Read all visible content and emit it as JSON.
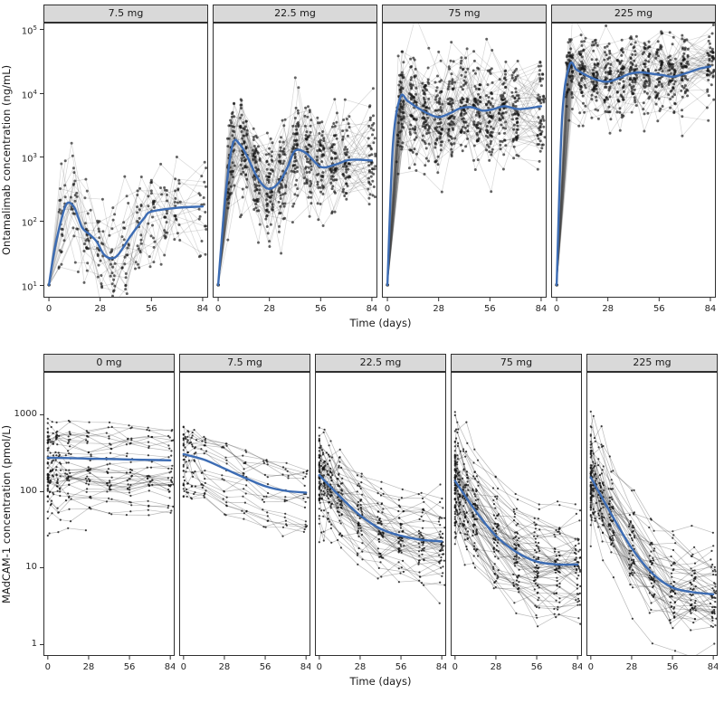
{
  "style": {
    "mean_line_color": "#3c6cb4",
    "spaghetti_line_color": "#4a4a4a",
    "point_color": "#141414",
    "strip_background": "#d9d9d9",
    "panel_border_color": "#2f2f2f",
    "axis_text_color": "#262626",
    "background": "#ffffff"
  },
  "chart_data": [
    {
      "type": "line",
      "y_axis_title": "Ontamalimab concentration (ng/mL)",
      "x_axis_title": "Time (days)",
      "y_scale": "log10",
      "y_tick_style": "power",
      "y_tick_exponents": [
        1,
        2,
        3,
        4,
        5
      ],
      "y_domain_log": [
        0.8,
        5.1
      ],
      "x_ticks": [
        0,
        28,
        56,
        84
      ],
      "x_domain": [
        -3,
        87
      ],
      "day0_value": 10,
      "sample_times": [
        0,
        7,
        14,
        21,
        28,
        35,
        42,
        49,
        56,
        63,
        70,
        84
      ],
      "line_opacity": 0.22,
      "point_opacity": 0.65,
      "point_radius": 1.5,
      "legend": "none",
      "panels": [
        {
          "label": "7.5 mg",
          "n_subjects": 25,
          "subject_sd_log": 0.35,
          "resid_sd_log": 0.3,
          "mean_x": [
            0,
            3,
            7,
            10,
            14,
            18,
            22,
            26,
            30,
            34,
            38,
            45,
            52,
            56,
            70,
            84
          ],
          "mean_y": [
            10,
            35,
            110,
            190,
            160,
            80,
            62,
            48,
            30,
            26,
            30,
            60,
            110,
            140,
            160,
            168
          ]
        },
        {
          "label": "22.5 mg",
          "n_subjects": 60,
          "subject_sd_log": 0.32,
          "resid_sd_log": 0.3,
          "mean_x": [
            0,
            4,
            8,
            12,
            16,
            21,
            26,
            30,
            34,
            38,
            42,
            48,
            56,
            64,
            72,
            84
          ],
          "mean_y": [
            10,
            250,
            1600,
            1550,
            1000,
            500,
            330,
            330,
            430,
            700,
            1250,
            1150,
            700,
            760,
            900,
            880
          ]
        },
        {
          "label": "75 mg",
          "n_subjects": 65,
          "subject_sd_log": 0.28,
          "resid_sd_log": 0.26,
          "mean_x": [
            0,
            3,
            7,
            11,
            16,
            22,
            28,
            34,
            40,
            46,
            52,
            58,
            64,
            72,
            84
          ],
          "mean_y": [
            10,
            1500,
            8500,
            7500,
            6000,
            4800,
            4200,
            4800,
            5800,
            6000,
            5300,
            5600,
            6200,
            5600,
            6200
          ]
        },
        {
          "label": "225 mg",
          "n_subjects": 60,
          "subject_sd_log": 0.24,
          "resid_sd_log": 0.22,
          "mean_x": [
            0,
            3,
            7,
            11,
            16,
            22,
            28,
            34,
            40,
            46,
            52,
            58,
            64,
            72,
            78,
            84
          ],
          "mean_y": [
            10,
            4000,
            27000,
            23000,
            19000,
            16000,
            15000,
            17000,
            20000,
            21000,
            20000,
            19000,
            18000,
            21000,
            24000,
            26000
          ]
        }
      ]
    },
    {
      "type": "line",
      "y_axis_title": "MAdCAM-1 concentration (pmol/L)",
      "x_axis_title": "Time (days)",
      "y_scale": "log10",
      "y_tick_style": "plain",
      "y_tick_values": [
        1,
        10,
        100,
        1000
      ],
      "y_domain_log": [
        -0.15,
        3.55
      ],
      "x_ticks": [
        0,
        28,
        56,
        84
      ],
      "x_domain": [
        -3,
        87
      ],
      "sample_times": [
        0,
        2,
        7,
        14,
        28,
        42,
        56,
        70,
        84
      ],
      "line_opacity": 0.38,
      "point_opacity": 0.8,
      "point_radius": 1.1,
      "legend": "none",
      "panels": [
        {
          "label": "0 mg",
          "n_subjects": 42,
          "subject_sd_log": 0.33,
          "resid_sd_log": 0.05,
          "mean_x": [
            0,
            14,
            28,
            42,
            56,
            70,
            84
          ],
          "mean_y": [
            270,
            267,
            263,
            260,
            256,
            253,
            250
          ]
        },
        {
          "label": "7.5 mg",
          "n_subjects": 25,
          "subject_sd_log": 0.28,
          "resid_sd_log": 0.06,
          "mean_x": [
            0,
            14,
            28,
            42,
            56,
            70,
            84
          ],
          "mean_y": [
            300,
            255,
            195,
            148,
            115,
            100,
            95
          ]
        },
        {
          "label": "22.5 mg",
          "n_subjects": 55,
          "subject_sd_log": 0.3,
          "resid_sd_log": 0.09,
          "mean_x": [
            0,
            14,
            28,
            42,
            56,
            70,
            84
          ],
          "mean_y": [
            160,
            85,
            48,
            32,
            26,
            23,
            22
          ]
        },
        {
          "label": "75 mg",
          "n_subjects": 65,
          "subject_sd_log": 0.32,
          "resid_sd_log": 0.1,
          "mean_x": [
            0,
            14,
            28,
            42,
            56,
            70,
            84
          ],
          "mean_y": [
            135,
            55,
            26,
            16,
            12,
            11,
            11
          ]
        },
        {
          "label": "225 mg",
          "n_subjects": 55,
          "subject_sd_log": 0.32,
          "resid_sd_log": 0.12,
          "mean_x": [
            0,
            14,
            28,
            42,
            56,
            70,
            84
          ],
          "mean_y": [
            150,
            50,
            18,
            8.5,
            5.5,
            4.8,
            4.5
          ]
        }
      ]
    }
  ]
}
